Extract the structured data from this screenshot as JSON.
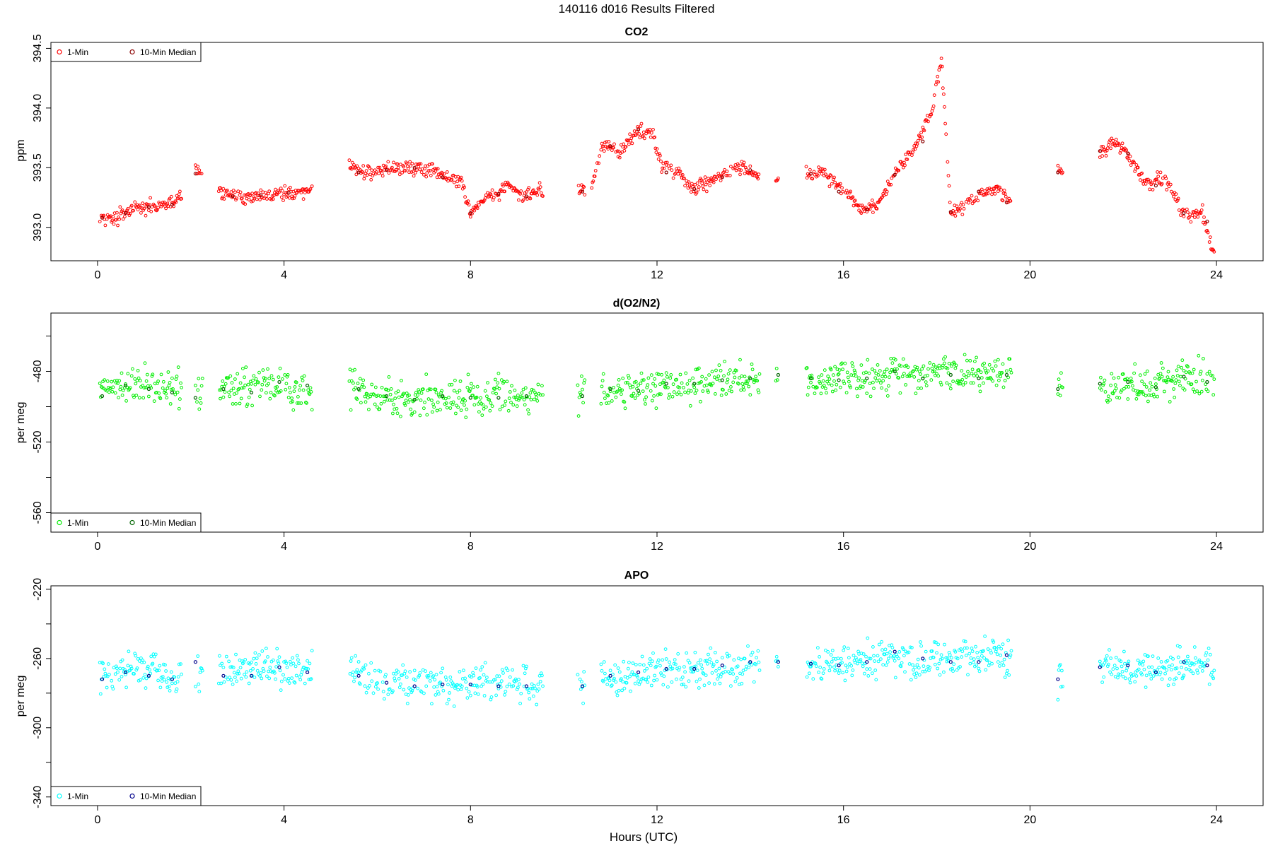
{
  "figure": {
    "title": "140116   d016   Results Filtered",
    "xlabel": "Hours (UTC)"
  },
  "colors": {
    "co2_1min": "#ff0000",
    "co2_median": "#8b0000",
    "o2_1min": "#00ee00",
    "o2_median": "#006400",
    "apo_1min": "#00ffff",
    "apo_median": "#00008b"
  },
  "chart_data": [
    {
      "type": "scatter",
      "title": "CO2",
      "xlabel": "",
      "ylabel": "ppm",
      "xlim": [
        -1.0,
        25.0
      ],
      "ylim": [
        392.72,
        394.55
      ],
      "xticks": [
        0,
        4,
        8,
        12,
        16,
        20,
        24
      ],
      "yticks": [
        393.0,
        393.5,
        394.0,
        394.5
      ],
      "ytick_labels": [
        "393.0",
        "393.5",
        "394.0",
        "394.5"
      ],
      "grid": false,
      "legend": {
        "placement": "top-left",
        "entries": [
          "1-Min",
          "10-Min Median"
        ]
      },
      "series": [
        {
          "name": "1-Min",
          "role": "1min",
          "x": [],
          "y": []
        },
        {
          "name": "10-Min Median",
          "role": "median",
          "x": [
            0.1,
            0.6,
            1.1,
            1.6,
            2.1,
            2.9,
            3.5,
            4.1,
            5.6,
            6.2,
            6.8,
            7.4,
            8.0,
            8.6,
            9.2,
            10.4,
            11.0,
            11.6,
            12.2,
            12.8,
            13.4,
            14.0,
            15.3,
            15.9,
            16.5,
            17.1,
            17.7,
            18.3,
            18.9,
            19.5,
            20.6,
            21.5,
            22.1,
            22.7,
            23.3,
            23.8
          ],
          "y": [
            393.08,
            393.12,
            393.17,
            393.19,
            393.45,
            393.26,
            393.27,
            393.29,
            393.46,
            393.48,
            393.5,
            393.42,
            393.12,
            393.28,
            393.26,
            393.3,
            393.68,
            393.82,
            393.46,
            393.32,
            393.42,
            393.48,
            393.45,
            393.3,
            393.15,
            393.44,
            393.72,
            393.13,
            393.3,
            393.21,
            393.46,
            393.64,
            393.62,
            393.35,
            393.12,
            393.05
          ]
        }
      ],
      "generator_anchors": {
        "x": [
          0.05,
          0.4,
          0.8,
          1.2,
          1.7,
          2.1,
          2.2,
          2.6,
          3.0,
          3.5,
          4.0,
          4.55,
          5.4,
          5.8,
          6.3,
          6.9,
          7.4,
          7.8,
          8.0,
          8.4,
          8.8,
          9.1,
          9.5,
          10.3,
          10.6,
          10.8,
          11.2,
          11.6,
          11.9,
          12.1,
          12.5,
          12.8,
          13.3,
          13.8,
          14.1,
          14.55,
          15.2,
          15.6,
          16.0,
          16.4,
          16.7,
          17.1,
          17.5,
          17.9,
          18.1,
          18.3,
          18.6,
          19.0,
          19.3,
          19.55,
          20.6,
          21.5,
          21.8,
          22.1,
          22.5,
          22.9,
          23.3,
          23.7,
          23.95
        ],
        "y": [
          393.1,
          393.08,
          393.16,
          393.17,
          393.2,
          393.46,
          393.46,
          393.3,
          393.25,
          393.27,
          393.28,
          393.3,
          393.5,
          393.46,
          393.49,
          393.5,
          393.44,
          393.38,
          393.12,
          393.25,
          393.35,
          393.27,
          393.31,
          393.33,
          393.3,
          393.7,
          393.64,
          393.8,
          393.8,
          393.52,
          393.45,
          393.32,
          393.43,
          393.5,
          393.46,
          393.38,
          393.45,
          393.45,
          393.3,
          393.15,
          393.18,
          393.45,
          393.65,
          394.0,
          394.42,
          393.12,
          393.18,
          393.3,
          393.32,
          393.23,
          393.45,
          393.62,
          393.72,
          393.62,
          393.35,
          393.42,
          393.1,
          393.12,
          392.76
        ],
        "noise": 0.035,
        "break_after_hours": [
          1.8,
          2.25,
          4.6,
          9.55,
          10.45,
          14.2,
          14.6,
          19.6,
          20.7
        ]
      }
    },
    {
      "type": "scatter",
      "title": "d(O2/N2)",
      "xlabel": "",
      "ylabel": "per meg",
      "xlim": [
        -1.0,
        25.0
      ],
      "ylim": [
        -571,
        -447
      ],
      "xticks": [
        0,
        4,
        8,
        12,
        16,
        20,
        24
      ],
      "yticks": [
        -560,
        -540,
        -520,
        -500,
        -480,
        -460
      ],
      "ytick_labels": [
        "-560",
        "",
        "-520",
        "",
        "-480",
        ""
      ],
      "grid": false,
      "legend": {
        "placement": "bottom-left",
        "entries": [
          "1-Min",
          "10-Min Median"
        ]
      },
      "series": [
        {
          "name": "1-Min",
          "role": "1min",
          "x": [],
          "y": []
        },
        {
          "name": "10-Min Median",
          "role": "median",
          "x": [
            0.1,
            0.6,
            1.1,
            1.6,
            2.1,
            2.7,
            3.3,
            3.9,
            4.5,
            5.6,
            6.2,
            6.8,
            7.4,
            8.0,
            8.6,
            9.2,
            10.4,
            11.0,
            11.6,
            12.2,
            12.8,
            13.4,
            14.0,
            14.6,
            15.3,
            15.9,
            16.5,
            17.1,
            17.7,
            18.3,
            18.9,
            19.5,
            20.6,
            21.5,
            22.1,
            22.7,
            23.3,
            23.8
          ],
          "y": [
            -494,
            -488,
            -490,
            -492,
            -495,
            -490,
            -492,
            -486,
            -488,
            -490,
            -494,
            -496,
            -494,
            -495,
            -495,
            -494,
            -494,
            -490,
            -491,
            -487,
            -487,
            -485,
            -484,
            -482,
            -484,
            -485,
            -484,
            -480,
            -484,
            -482,
            -484,
            -482,
            -490,
            -487,
            -486,
            -489,
            -483,
            -486
          ]
        }
      ],
      "generator_anchors": {
        "x": [
          0.05,
          0.4,
          0.8,
          1.3,
          1.8,
          2.1,
          2.2,
          2.6,
          3.0,
          3.5,
          4.0,
          4.55,
          5.4,
          6.0,
          6.6,
          7.2,
          7.8,
          8.4,
          9.0,
          9.5,
          10.3,
          10.8,
          11.4,
          12.0,
          12.6,
          13.2,
          13.8,
          14.2,
          14.55,
          15.2,
          15.8,
          16.4,
          17.0,
          17.6,
          18.2,
          18.8,
          19.55,
          20.6,
          21.5,
          22.0,
          22.5,
          23.0,
          23.5,
          23.95
        ],
        "y": [
          -492,
          -490,
          -485,
          -490,
          -492,
          -492,
          -492,
          -490,
          -489,
          -487,
          -488,
          -490,
          -489,
          -494,
          -496,
          -495,
          -494,
          -493,
          -495,
          -494,
          -493,
          -492,
          -492,
          -489,
          -487,
          -486,
          -484,
          -484,
          -482,
          -484,
          -484,
          -483,
          -481,
          -484,
          -482,
          -481,
          -482,
          -490,
          -488,
          -487,
          -489,
          -486,
          -483,
          -485
        ],
        "noise": 6.5,
        "break_after_hours": [
          1.8,
          2.25,
          4.6,
          9.55,
          10.45,
          14.2,
          14.6,
          19.6,
          20.7
        ]
      }
    },
    {
      "type": "scatter",
      "title": "APO",
      "xlabel": "Hours (UTC)",
      "ylabel": "per meg",
      "xlim": [
        -1.0,
        25.0
      ],
      "ylim": [
        -345,
        -218
      ],
      "xticks": [
        0,
        4,
        8,
        12,
        16,
        20,
        24
      ],
      "yticks": [
        -340,
        -320,
        -300,
        -280,
        -260,
        -240,
        -220
      ],
      "ytick_labels": [
        "-340",
        "",
        "-300",
        "",
        "-260",
        "",
        "-220"
      ],
      "grid": false,
      "legend": {
        "placement": "bottom-left",
        "entries": [
          "1-Min",
          "10-Min Median"
        ]
      },
      "series": [
        {
          "name": "1-Min",
          "role": "1min",
          "x": [],
          "y": []
        },
        {
          "name": "10-Min Median",
          "role": "median",
          "x": [
            0.1,
            0.6,
            1.1,
            1.6,
            2.1,
            2.7,
            3.3,
            3.9,
            4.5,
            5.6,
            6.2,
            6.8,
            7.4,
            8.0,
            8.6,
            9.2,
            10.4,
            11.0,
            11.6,
            12.2,
            12.8,
            13.4,
            14.0,
            14.6,
            15.3,
            15.9,
            16.5,
            17.1,
            17.7,
            18.3,
            18.9,
            19.5,
            20.6,
            21.5,
            22.1,
            22.7,
            23.3,
            23.8
          ],
          "y": [
            -272,
            -268,
            -270,
            -272,
            -262,
            -270,
            -270,
            -265,
            -268,
            -270,
            -274,
            -276,
            -275,
            -275,
            -276,
            -276,
            -276,
            -270,
            -268,
            -266,
            -266,
            -264,
            -262,
            -262,
            -263,
            -264,
            -262,
            -256,
            -260,
            -262,
            -262,
            -258,
            -272,
            -265,
            -264,
            -268,
            -262,
            -264
          ]
        }
      ],
      "generator_anchors": {
        "x": [
          0.05,
          0.4,
          0.8,
          1.3,
          1.8,
          2.1,
          2.2,
          2.6,
          3.0,
          3.5,
          4.0,
          4.55,
          5.4,
          6.0,
          6.6,
          7.2,
          7.8,
          8.4,
          9.0,
          9.5,
          10.3,
          10.8,
          11.4,
          12.0,
          12.6,
          13.2,
          13.8,
          14.2,
          14.55,
          15.2,
          15.8,
          16.4,
          17.0,
          17.6,
          18.2,
          18.8,
          19.55,
          20.6,
          21.5,
          22.0,
          22.5,
          23.0,
          23.5,
          23.95
        ],
        "y": [
          -272,
          -270,
          -266,
          -270,
          -272,
          -270,
          -270,
          -270,
          -268,
          -266,
          -267,
          -268,
          -268,
          -273,
          -275,
          -274,
          -274,
          -273,
          -275,
          -275,
          -274,
          -271,
          -270,
          -267,
          -266,
          -265,
          -263,
          -262,
          -262,
          -263,
          -263,
          -262,
          -258,
          -262,
          -260,
          -258,
          -260,
          -272,
          -266,
          -265,
          -268,
          -264,
          -262,
          -264
        ],
        "noise": 6.5,
        "break_after_hours": [
          1.8,
          2.25,
          4.6,
          9.55,
          10.45,
          14.2,
          14.6,
          19.6,
          20.7
        ]
      }
    }
  ]
}
